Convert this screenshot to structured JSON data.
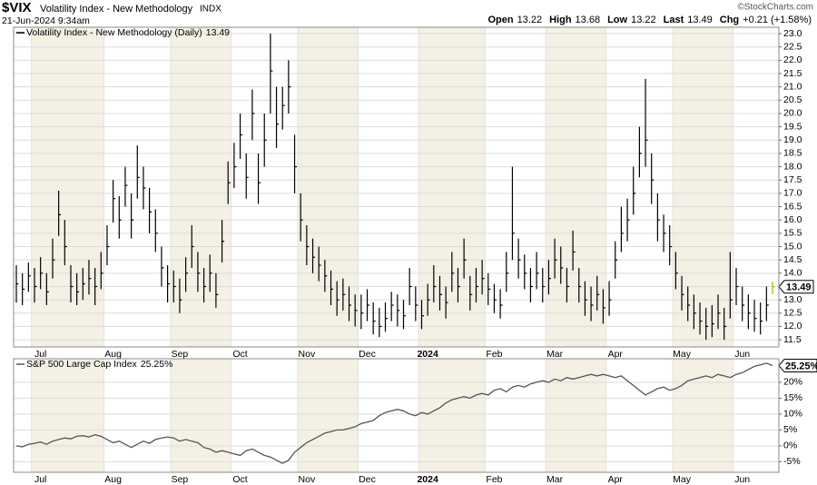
{
  "header": {
    "symbol": "$VIX",
    "name": "Volatility Index - New Methodology",
    "exchange": "INDX",
    "datetime": "21-Jun-2024 9:34am",
    "source": "©StockCharts.com",
    "quote": [
      {
        "label": "Open",
        "value": "13.22"
      },
      {
        "label": "High",
        "value": "13.68"
      },
      {
        "label": "Low",
        "value": "13.22"
      },
      {
        "label": "Last",
        "value": "13.49"
      },
      {
        "label": "Chg",
        "value": "+0.21 (+1.58%)"
      }
    ]
  },
  "chart_data": [
    {
      "type": "ohlc",
      "name": "Volatility Index - New Methodology (Daily)",
      "color": "#000000",
      "last_color": "#b8a800",
      "grid": true,
      "categories": [
        null,
        null,
        null,
        "Jul",
        null,
        null,
        null,
        null,
        null,
        null,
        null,
        null,
        null,
        null,
        null,
        "Aug",
        null,
        null,
        null,
        null,
        null,
        null,
        null,
        null,
        null,
        null,
        "Sep",
        null,
        null,
        null,
        null,
        null,
        null,
        null,
        null,
        null,
        "Oct",
        null,
        null,
        null,
        null,
        null,
        null,
        null,
        null,
        null,
        null,
        "Nov",
        null,
        null,
        null,
        null,
        null,
        null,
        null,
        null,
        null,
        "Dec",
        null,
        null,
        null,
        null,
        null,
        null,
        null,
        null,
        null,
        "2024",
        null,
        null,
        null,
        null,
        null,
        null,
        null,
        null,
        null,
        null,
        "Feb",
        null,
        null,
        null,
        null,
        null,
        null,
        null,
        null,
        null,
        "Mar",
        null,
        null,
        null,
        null,
        null,
        null,
        null,
        null,
        null,
        "Apr",
        null,
        null,
        null,
        null,
        null,
        null,
        null,
        null,
        null,
        null,
        "May",
        null,
        null,
        null,
        null,
        null,
        null,
        null,
        null,
        null,
        "Jun",
        null,
        null,
        null,
        null,
        null,
        null
      ],
      "highs": [
        14.3,
        14.0,
        14.4,
        14.2,
        14.6,
        14.0,
        15.3,
        17.1,
        16.0,
        14.3,
        14.0,
        14.2,
        14.5,
        14.2,
        14.8,
        15.8,
        17.5,
        16.9,
        18.0,
        17.0,
        18.8,
        18.0,
        17.2,
        16.4,
        15.0,
        14.3,
        14.1,
        13.8,
        14.6,
        15.8,
        14.8,
        14.2,
        14.7,
        14.0,
        16.0,
        18.2,
        18.9,
        20.0,
        18.5,
        20.9,
        18.5,
        20.0,
        23.0,
        21.0,
        21.0,
        22.0,
        19.2,
        17.0,
        15.8,
        15.3,
        15.0,
        14.5,
        14.1,
        13.7,
        13.8,
        13.5,
        13.2,
        13.2,
        13.4,
        12.9,
        12.7,
        12.9,
        13.3,
        13.2,
        13.0,
        14.2,
        13.5,
        13.0,
        13.6,
        14.3,
        13.9,
        13.5,
        14.8,
        14.2,
        15.3,
        13.9,
        14.2,
        14.5,
        14.0,
        13.6,
        13.4,
        14.8,
        18.0,
        15.3,
        14.7,
        14.2,
        14.8,
        14.2,
        14.5,
        15.3,
        15.0,
        14.2,
        15.6,
        14.2,
        13.7,
        13.5,
        13.9,
        13.4,
        13.7,
        15.2,
        16.5,
        16.8,
        18.0,
        19.5,
        21.3,
        18.5,
        17.0,
        16.2,
        15.8,
        14.8,
        13.9,
        13.5,
        13.2,
        12.9,
        12.7,
        12.8,
        13.2,
        12.7,
        14.8,
        14.2,
        13.5,
        13.2,
        13.0,
        12.9,
        13.5,
        13.68
      ],
      "lows": [
        12.9,
        12.8,
        13.3,
        12.9,
        13.4,
        12.8,
        13.8,
        15.4,
        14.3,
        12.9,
        12.8,
        13.0,
        13.2,
        12.8,
        13.4,
        14.3,
        15.9,
        15.3,
        16.5,
        15.3,
        16.8,
        16.4,
        15.5,
        14.8,
        13.5,
        12.9,
        12.9,
        12.5,
        13.3,
        14.2,
        13.3,
        12.9,
        13.3,
        12.7,
        14.4,
        16.6,
        17.2,
        18.3,
        16.8,
        19.0,
        16.6,
        18.0,
        20.0,
        18.7,
        19.4,
        20.0,
        17.0,
        15.2,
        14.3,
        14.0,
        13.7,
        13.3,
        12.8,
        12.4,
        12.6,
        12.2,
        12.0,
        11.9,
        12.2,
        11.7,
        11.6,
        11.8,
        12.2,
        12.0,
        11.9,
        12.8,
        12.2,
        11.9,
        12.4,
        12.9,
        12.6,
        12.3,
        13.3,
        12.9,
        13.8,
        12.6,
        12.9,
        13.2,
        12.8,
        12.5,
        12.3,
        13.3,
        14.5,
        13.8,
        13.4,
        12.9,
        13.4,
        12.9,
        13.2,
        13.8,
        13.6,
        12.9,
        14.1,
        12.9,
        12.4,
        12.2,
        12.6,
        12.1,
        12.4,
        13.8,
        14.8,
        15.2,
        16.2,
        17.6,
        18.0,
        16.6,
        15.2,
        14.8,
        14.3,
        13.4,
        12.6,
        12.2,
        11.9,
        11.7,
        11.5,
        11.6,
        11.9,
        11.5,
        12.3,
        12.8,
        12.2,
        11.9,
        11.8,
        11.7,
        12.2,
        13.22
      ],
      "closes": [
        13.6,
        13.4,
        13.9,
        13.5,
        14.0,
        13.3,
        14.5,
        16.2,
        15.0,
        13.5,
        13.3,
        13.6,
        13.8,
        13.5,
        14.0,
        15.0,
        16.8,
        16.0,
        17.3,
        16.0,
        17.6,
        17.2,
        16.3,
        15.5,
        14.2,
        13.6,
        13.5,
        13.0,
        14.0,
        15.0,
        14.0,
        13.5,
        14.0,
        13.2,
        15.2,
        17.4,
        18.0,
        19.2,
        17.6,
        20.0,
        17.4,
        19.0,
        21.6,
        19.6,
        20.3,
        21.0,
        18.0,
        16.0,
        15.0,
        14.6,
        14.3,
        13.9,
        13.4,
        13.0,
        13.2,
        12.8,
        12.6,
        12.5,
        12.8,
        12.2,
        12.0,
        12.3,
        12.8,
        12.6,
        12.4,
        13.5,
        12.8,
        12.4,
        13.0,
        13.5,
        13.2,
        12.9,
        14.0,
        13.5,
        14.5,
        13.2,
        13.5,
        13.8,
        13.4,
        13.0,
        12.8,
        14.0,
        15.5,
        14.5,
        14.0,
        13.5,
        14.0,
        13.5,
        13.8,
        14.5,
        14.2,
        13.5,
        14.8,
        13.5,
        13.0,
        12.8,
        13.2,
        12.7,
        13.0,
        14.5,
        15.5,
        16.0,
        17.0,
        18.5,
        19.0,
        17.5,
        16.0,
        15.5,
        15.0,
        14.0,
        13.2,
        12.8,
        12.5,
        12.2,
        12.0,
        12.1,
        12.5,
        12.0,
        13.0,
        13.5,
        12.8,
        12.5,
        12.3,
        12.2,
        12.8,
        13.49
      ],
      "ylim": [
        11.23,
        23.24
      ],
      "yticks": [
        11.5,
        {
          "value": 12,
          "label": "12.0"
        },
        12.5,
        {
          "value": 13,
          "label": "13.0"
        },
        13.5,
        {
          "value": 14,
          "label": "14.0"
        },
        14.5,
        {
          "value": 15,
          "label": "15.0"
        },
        15.5,
        {
          "value": 16,
          "label": "16.0"
        },
        16.5,
        {
          "value": 17,
          "label": "17.0"
        },
        17.5,
        {
          "value": 18,
          "label": "18.0"
        },
        18.5,
        {
          "value": 19,
          "label": "19.0"
        },
        19.5,
        {
          "value": 20,
          "label": "20.0"
        },
        20.5,
        {
          "value": 21,
          "label": "21.0"
        },
        21.5,
        {
          "value": 22,
          "label": "22.0"
        },
        22.5,
        {
          "value": 23,
          "label": "23.0"
        }
      ]
    },
    {
      "type": "line",
      "name": "S&P 500 Large Cap Index",
      "color": "#555555",
      "grid": true,
      "categories": [
        null,
        null,
        null,
        "Jul",
        null,
        null,
        null,
        null,
        null,
        null,
        null,
        null,
        null,
        null,
        null,
        "Aug",
        null,
        null,
        null,
        null,
        null,
        null,
        null,
        null,
        null,
        null,
        "Sep",
        null,
        null,
        null,
        null,
        null,
        null,
        null,
        null,
        null,
        "Oct",
        null,
        null,
        null,
        null,
        null,
        null,
        null,
        null,
        null,
        null,
        "Nov",
        null,
        null,
        null,
        null,
        null,
        null,
        null,
        null,
        null,
        "Dec",
        null,
        null,
        null,
        null,
        null,
        null,
        null,
        null,
        null,
        "2024",
        null,
        null,
        null,
        null,
        null,
        null,
        null,
        null,
        null,
        null,
        "Feb",
        null,
        null,
        null,
        null,
        null,
        null,
        null,
        null,
        null,
        "Mar",
        null,
        null,
        null,
        null,
        null,
        null,
        null,
        null,
        null,
        "Apr",
        null,
        null,
        null,
        null,
        null,
        null,
        null,
        null,
        null,
        null,
        "May",
        null,
        null,
        null,
        null,
        null,
        null,
        null,
        null,
        null,
        "Jun",
        null,
        null,
        null,
        null,
        null,
        null
      ],
      "values": [
        0,
        -0.3,
        0.5,
        0.8,
        1.2,
        0.5,
        1.5,
        2.0,
        2.5,
        2.2,
        3.0,
        3.2,
        2.8,
        3.5,
        3.0,
        2.0,
        1.0,
        1.5,
        0.5,
        -0.5,
        0.5,
        1.5,
        0.8,
        2.0,
        2.5,
        2.8,
        2.5,
        1.5,
        2.0,
        1.5,
        1.0,
        -0.5,
        -1.0,
        -2.0,
        -1.5,
        -2.0,
        -2.5,
        -3.0,
        -1.5,
        -1.0,
        -2.0,
        -3.0,
        -3.5,
        -4.5,
        -5.5,
        -4.5,
        -2.0,
        -0.5,
        1.0,
        2.0,
        3.0,
        4.0,
        4.5,
        5.0,
        5.0,
        5.5,
        6.0,
        7.0,
        7.5,
        8.0,
        9.5,
        10.5,
        11.0,
        11.5,
        11.0,
        10.0,
        9.5,
        10.5,
        10.0,
        11.0,
        12.0,
        13.5,
        14.5,
        15.0,
        15.5,
        15.0,
        16.0,
        16.5,
        16.0,
        17.5,
        18.0,
        17.0,
        18.5,
        19.0,
        18.5,
        19.5,
        20.0,
        20.5,
        20.0,
        21.0,
        20.5,
        21.5,
        21.0,
        21.5,
        22.0,
        22.5,
        22.0,
        22.5,
        22.0,
        21.5,
        22.0,
        20.5,
        19.0,
        17.5,
        16.0,
        17.0,
        18.0,
        18.5,
        17.5,
        18.0,
        19.0,
        20.5,
        21.0,
        21.5,
        22.0,
        21.5,
        22.5,
        22.0,
        21.5,
        22.5,
        23.0,
        24.0,
        25.0,
        25.5,
        26.0,
        25.25
      ],
      "last_label": {
        "value": 25.25,
        "label": "25.25%"
      },
      "ylim": [
        -8.3,
        27.4
      ],
      "yticks": [
        {
          "value": -5,
          "label": "-5%"
        },
        {
          "value": 0,
          "label": "0%"
        },
        {
          "value": 5,
          "label": "5%"
        },
        {
          "value": 10,
          "label": "10%"
        },
        {
          "value": 15,
          "label": "15%"
        },
        {
          "value": 20,
          "label": "20%"
        }
      ]
    }
  ]
}
